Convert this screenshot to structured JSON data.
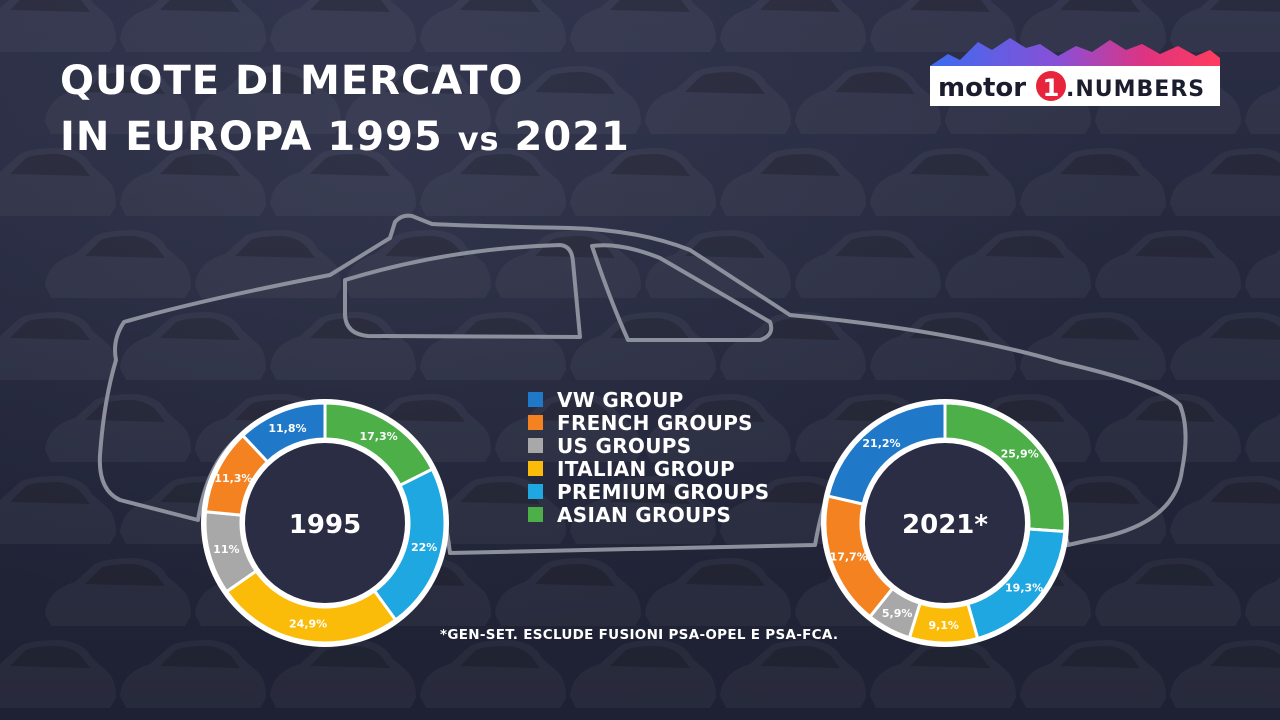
{
  "title": {
    "line1": "QUOTE DI MERCATO",
    "line2_part1": "IN EUROPA 1995",
    "line2_vs": "vs",
    "line2_part2": "2021"
  },
  "logo": {
    "word1": "motor",
    "digit": "1",
    "word2": ".NUMBERS"
  },
  "footnote": "*GEN-SET. ESCLUDE FUSIONI PSA-OPEL E PSA-FCA.",
  "colors": {
    "vw": "#1f78c8",
    "french": "#f58220",
    "us": "#a8a8a8",
    "italian": "#fbbc09",
    "premium": "#1ea7e1",
    "asian": "#4caf48",
    "background": "#23263a"
  },
  "chart_data": [
    {
      "type": "pie",
      "center_label": "1995",
      "legend": [
        "VW GROUP",
        "FRENCH GROUPS",
        "US GROUPS",
        "ITALIAN GROUP",
        "PREMIUM GROUPS",
        "ASIAN GROUPS"
      ],
      "slices": [
        {
          "name": "ASIAN GROUPS",
          "value": 17.3,
          "label": "17,3%",
          "color": "#4caf48"
        },
        {
          "name": "PREMIUM GROUPS",
          "value": 22,
          "label": "22%",
          "color": "#1ea7e1"
        },
        {
          "name": "ITALIAN GROUP",
          "value": 24.9,
          "label": "24,9%",
          "color": "#fbbc09"
        },
        {
          "name": "US GROUPS",
          "value": 11,
          "label": "11%",
          "color": "#a8a8a8"
        },
        {
          "name": "FRENCH GROUPS",
          "value": 11.3,
          "label": "11,3%",
          "color": "#f58220"
        },
        {
          "name": "VW GROUP",
          "value": 11.8,
          "label": "11,8%",
          "color": "#1f78c8"
        }
      ]
    },
    {
      "type": "pie",
      "center_label": "2021*",
      "slices": [
        {
          "name": "ASIAN GROUPS",
          "value": 25.9,
          "label": "25,9%",
          "color": "#4caf48"
        },
        {
          "name": "PREMIUM GROUPS",
          "value": 19.3,
          "label": "19,3%",
          "color": "#1ea7e1"
        },
        {
          "name": "ITALIAN GROUP",
          "value": 9.1,
          "label": "9,1%",
          "color": "#fbbc09"
        },
        {
          "name": "US GROUPS",
          "value": 5.9,
          "label": "5,9%",
          "color": "#a8a8a8"
        },
        {
          "name": "FRENCH GROUPS",
          "value": 17.7,
          "label": "17,7%",
          "color": "#f58220"
        },
        {
          "name": "VW GROUP",
          "value": 21.2,
          "label": "21,2%",
          "color": "#1f78c8"
        }
      ]
    }
  ]
}
